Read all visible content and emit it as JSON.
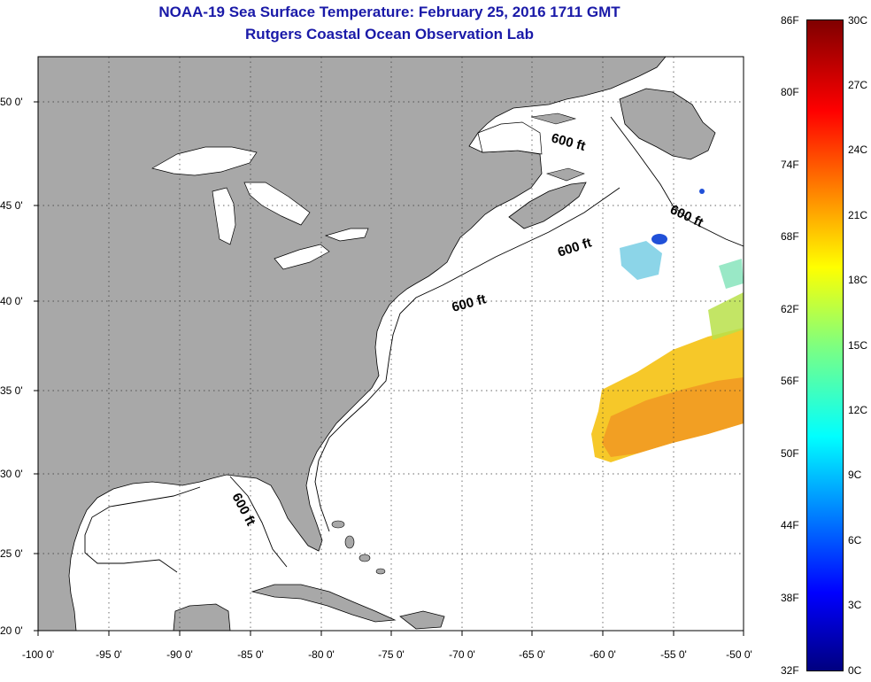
{
  "title": {
    "line1": "NOAA-19 Sea Surface Temperature:  February 25, 2016 1711 GMT",
    "line2": "Rutgers Coastal Ocean Observation Lab"
  },
  "axes": {
    "latitude_labels": [
      "50 0'",
      "45 0'",
      "40 0'",
      "35 0'",
      "30 0'",
      "25 0'",
      "20 0'"
    ],
    "longitude_labels": [
      "-100 0'",
      "-95 0'",
      "-90 0'",
      "-85 0'",
      "-80 0'",
      "-75 0'",
      "-70 0'",
      "-65 0'",
      "-60 0'",
      "-55 0'",
      "-50 0'"
    ]
  },
  "isobath_labels": [
    "600 ft",
    "600 ft",
    "600 ft",
    "600 ft",
    "600 ft"
  ],
  "colorbar": {
    "fahrenheit": [
      "86F",
      "80F",
      "74F",
      "68F",
      "62F",
      "56F",
      "50F",
      "44F",
      "38F",
      "32F"
    ],
    "celsius": [
      "30C",
      "27C",
      "24C",
      "21C",
      "18C",
      "15C",
      "12C",
      "9C",
      "6C",
      "3C",
      "0C"
    ]
  },
  "colors": {
    "land": "#a8a8a8",
    "ocean": "#ffffff",
    "title": "#1a1aa8",
    "scale_low": "#00007f",
    "scale_high": "#7f0000"
  }
}
